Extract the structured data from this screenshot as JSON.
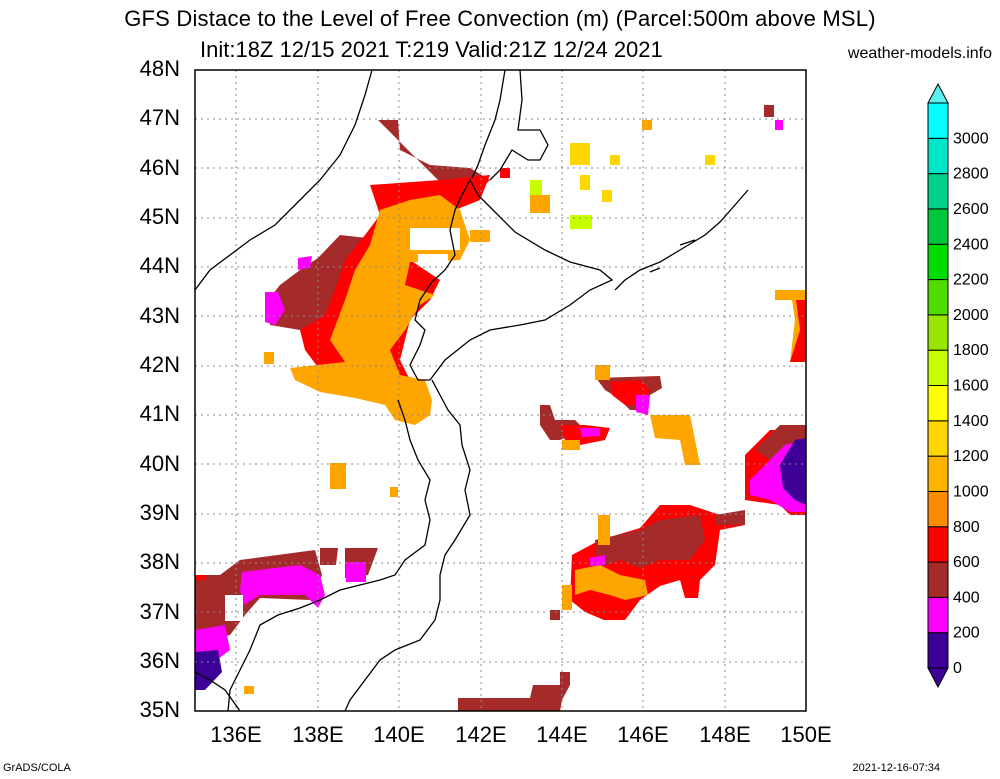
{
  "title": {
    "line1": "GFS Distace to the Level of Free Convection (m) (Parcel:500m above MSL)",
    "line2": "Init:18Z 12/15 2021 T:219 Valid:21Z 12/24 2021",
    "site": "weather-models.info"
  },
  "axes": {
    "lat_labels": [
      "48N",
      "47N",
      "46N",
      "45N",
      "44N",
      "43N",
      "42N",
      "41N",
      "40N",
      "39N",
      "38N",
      "37N",
      "36N",
      "35N"
    ],
    "lon_labels": [
      "136E",
      "138E",
      "140E",
      "142E",
      "144E",
      "146E",
      "148E",
      "150E"
    ],
    "lat_range": [
      35,
      48
    ],
    "lon_range": [
      135,
      150
    ]
  },
  "colorbar": {
    "levels": [
      "0",
      "200",
      "400",
      "600",
      "800",
      "1000",
      "1200",
      "1400",
      "1600",
      "1800",
      "2000",
      "2200",
      "2400",
      "2600",
      "2800",
      "3000"
    ],
    "colors": [
      "#3c0096",
      "#ff00ff",
      "#a52a2a",
      "#ff0000",
      "#ff8c00",
      "#ffb400",
      "#ffd700",
      "#ffff00",
      "#c8ff00",
      "#96e600",
      "#50dc00",
      "#00dc00",
      "#00c83c",
      "#00d28c",
      "#00e6c8",
      "#00ffff"
    ],
    "underflow_color": "#3c0096",
    "overflow_color": "#5af0f0"
  },
  "footer": {
    "left": "GrADS/COLA",
    "right": "2021-12-16-07:34"
  }
}
